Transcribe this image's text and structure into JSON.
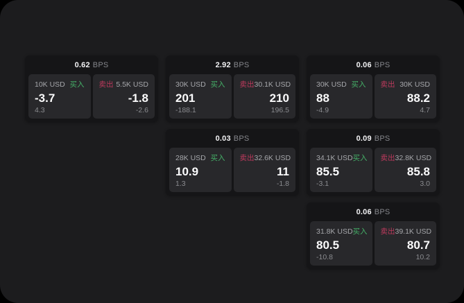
{
  "labels": {
    "bps": "BPS",
    "buy": "买入",
    "sell": "卖出"
  },
  "colors": {
    "outer_background": "#000000",
    "panel_background": "#1c1c1e",
    "card_background": "#151517",
    "pane_background": "#28282b",
    "text_primary": "#fbfbfc",
    "text_secondary": "#a6a7ab",
    "text_muted": "#8b8c90",
    "buy_green": "#45b168",
    "sell_red": "#bd3a5d"
  },
  "cards": [
    {
      "bps": "0.62",
      "buy": {
        "amount": "10K USD",
        "value": "-3.7",
        "delta": "4.3"
      },
      "sell": {
        "amount": "5.5K USD",
        "value": "-1.8",
        "delta": "-2.6"
      }
    },
    {
      "bps": "2.92",
      "buy": {
        "amount": "30K USD",
        "value": "201",
        "delta": "-188.1"
      },
      "sell": {
        "amount": "30.1K USD",
        "value": "210",
        "delta": "196.5"
      }
    },
    {
      "bps": "0.06",
      "buy": {
        "amount": "30K USD",
        "value": "88",
        "delta": "-4.9"
      },
      "sell": {
        "amount": "30K USD",
        "value": "88.2",
        "delta": "4.7"
      }
    },
    {
      "bps": "0.03",
      "buy": {
        "amount": "28K USD",
        "value": "10.9",
        "delta": "1.3"
      },
      "sell": {
        "amount": "32.6K USD",
        "value": "11",
        "delta": "-1.8"
      }
    },
    {
      "bps": "0.09",
      "buy": {
        "amount": "34.1K USD",
        "value": "85.5",
        "delta": "-3.1"
      },
      "sell": {
        "amount": "32.8K USD",
        "value": "85.8",
        "delta": "3.0"
      }
    },
    {
      "bps": "0.06",
      "buy": {
        "amount": "31.8K USD",
        "value": "80.5",
        "delta": "-10.8"
      },
      "sell": {
        "amount": "39.1K USD",
        "value": "80.7",
        "delta": "10.2"
      }
    }
  ]
}
